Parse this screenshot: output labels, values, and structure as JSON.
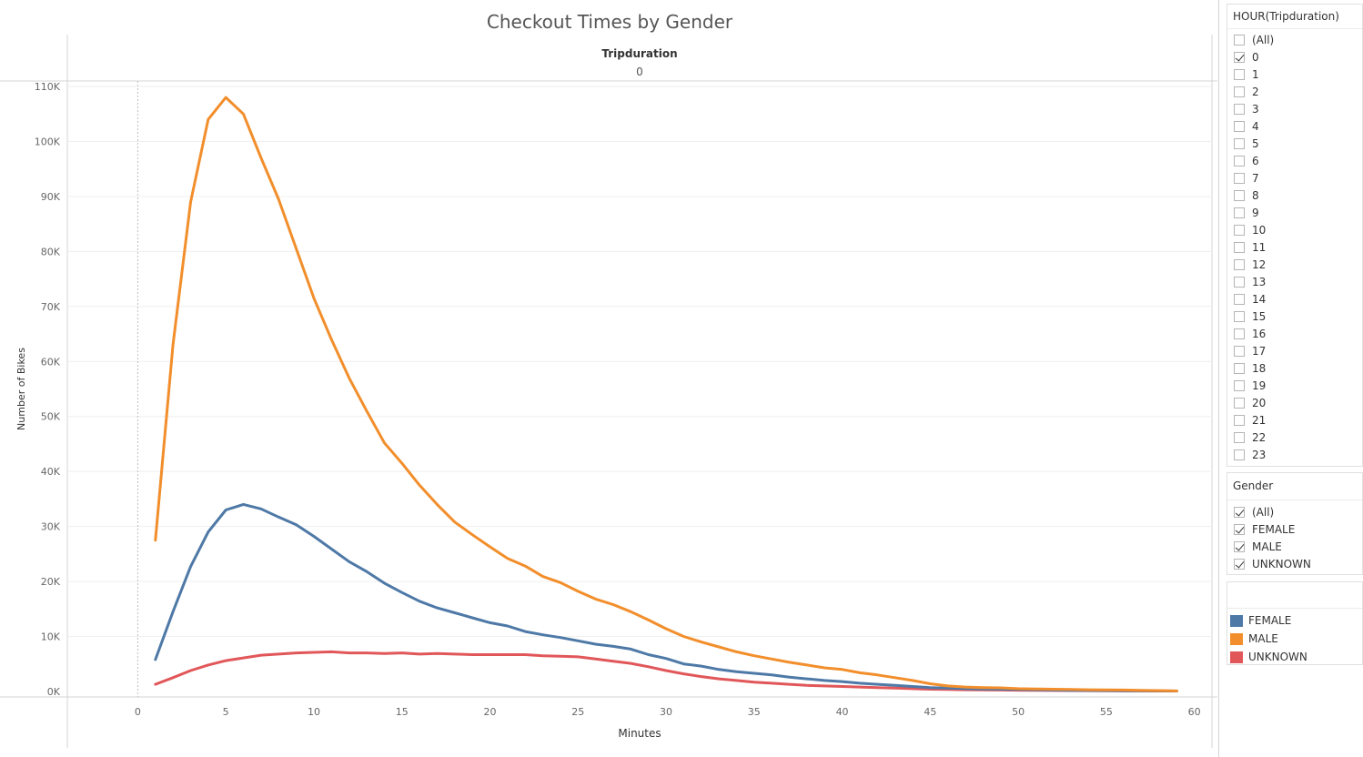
{
  "chart_data": {
    "type": "line",
    "title": "Checkout Times by Gender",
    "header_label": "Tripduration",
    "header_value": "0",
    "xlabel": "Minutes",
    "ylabel": "Number of Bikes",
    "xlim": [
      -4,
      61
    ],
    "ylim": [
      -1000,
      111000
    ],
    "x_ticks": [
      0,
      5,
      10,
      15,
      20,
      25,
      30,
      35,
      40,
      45,
      50,
      55,
      60
    ],
    "x_tick_labels": [
      "0",
      "5",
      "10",
      "15",
      "20",
      "25",
      "30",
      "35",
      "40",
      "45",
      "50",
      "55",
      "60"
    ],
    "y_ticks": [
      0,
      10000,
      20000,
      30000,
      40000,
      50000,
      60000,
      70000,
      80000,
      90000,
      100000,
      110000
    ],
    "y_tick_labels": [
      "0K",
      "10K",
      "20K",
      "30K",
      "40K",
      "50K",
      "60K",
      "70K",
      "80K",
      "90K",
      "100K",
      "110K"
    ],
    "grid": "horizontal",
    "x": [
      1,
      2,
      3,
      4,
      5,
      6,
      7,
      8,
      9,
      10,
      11,
      12,
      13,
      14,
      15,
      16,
      17,
      18,
      19,
      20,
      21,
      22,
      23,
      24,
      25,
      26,
      27,
      28,
      29,
      30,
      31,
      32,
      33,
      34,
      35,
      36,
      37,
      38,
      39,
      40,
      41,
      42,
      43,
      44,
      45,
      46,
      47,
      48,
      49,
      50,
      51,
      52,
      53,
      54,
      55,
      56,
      57,
      58,
      59
    ],
    "series": [
      {
        "name": "MALE",
        "color": "#f28e2b",
        "values": [
          27500,
          63000,
          89000,
          104000,
          108000,
          105000,
          97000,
          89500,
          80500,
          71500,
          64000,
          57000,
          51000,
          45200,
          41500,
          37500,
          34000,
          30800,
          28500,
          26300,
          24200,
          22800,
          20900,
          19800,
          18200,
          16800,
          15800,
          14500,
          13000,
          11400,
          10000,
          9000,
          8100,
          7200,
          6500,
          5900,
          5300,
          4800,
          4300,
          4000,
          3400,
          3000,
          2500,
          2000,
          1400,
          1000,
          800,
          700,
          650,
          500,
          450,
          400,
          350,
          300,
          280,
          250,
          200,
          150,
          100
        ]
      },
      {
        "name": "FEMALE",
        "color": "#4e79a7",
        "values": [
          5800,
          14500,
          22700,
          29000,
          33000,
          34000,
          33200,
          31700,
          30300,
          28200,
          25900,
          23600,
          21800,
          19700,
          18000,
          16400,
          15200,
          14300,
          13400,
          12500,
          11900,
          10900,
          10300,
          9800,
          9200,
          8600,
          8200,
          7700,
          6700,
          6000,
          5000,
          4600,
          4000,
          3600,
          3300,
          3000,
          2600,
          2300,
          2000,
          1800,
          1500,
          1300,
          1100,
          900,
          700,
          600,
          500,
          450,
          400,
          350,
          300,
          250,
          200,
          180,
          160,
          140,
          120,
          100,
          80
        ]
      },
      {
        "name": "UNKNOWN",
        "color": "#e15759",
        "values": [
          1300,
          2500,
          3800,
          4800,
          5600,
          6100,
          6600,
          6800,
          7000,
          7100,
          7200,
          7000,
          7000,
          6900,
          7000,
          6800,
          6900,
          6800,
          6700,
          6700,
          6700,
          6700,
          6500,
          6400,
          6300,
          5900,
          5500,
          5100,
          4500,
          3800,
          3200,
          2700,
          2300,
          2000,
          1700,
          1500,
          1300,
          1100,
          1000,
          900,
          800,
          700,
          600,
          500,
          400,
          350,
          300,
          280,
          250,
          220,
          200,
          180,
          160,
          140,
          120,
          100,
          90,
          80,
          70
        ]
      }
    ]
  },
  "filters": {
    "hour": {
      "title": "HOUR(Tripduration)",
      "items": [
        {
          "label": "(All)",
          "checked": false
        },
        {
          "label": "0",
          "checked": true
        },
        {
          "label": "1",
          "checked": false
        },
        {
          "label": "2",
          "checked": false
        },
        {
          "label": "3",
          "checked": false
        },
        {
          "label": "4",
          "checked": false
        },
        {
          "label": "5",
          "checked": false
        },
        {
          "label": "6",
          "checked": false
        },
        {
          "label": "7",
          "checked": false
        },
        {
          "label": "8",
          "checked": false
        },
        {
          "label": "9",
          "checked": false
        },
        {
          "label": "10",
          "checked": false
        },
        {
          "label": "11",
          "checked": false
        },
        {
          "label": "12",
          "checked": false
        },
        {
          "label": "13",
          "checked": false
        },
        {
          "label": "14",
          "checked": false
        },
        {
          "label": "15",
          "checked": false
        },
        {
          "label": "16",
          "checked": false
        },
        {
          "label": "17",
          "checked": false
        },
        {
          "label": "18",
          "checked": false
        },
        {
          "label": "19",
          "checked": false
        },
        {
          "label": "20",
          "checked": false
        },
        {
          "label": "21",
          "checked": false
        },
        {
          "label": "22",
          "checked": false
        },
        {
          "label": "23",
          "checked": false
        }
      ]
    },
    "gender": {
      "title": "Gender",
      "items": [
        {
          "label": "(All)",
          "checked": true
        },
        {
          "label": "FEMALE",
          "checked": true
        },
        {
          "label": "MALE",
          "checked": true
        },
        {
          "label": "UNKNOWN",
          "checked": true
        }
      ]
    }
  },
  "legend": {
    "title": "",
    "items": [
      {
        "label": "FEMALE",
        "color": "#4e79a7"
      },
      {
        "label": "MALE",
        "color": "#f28e2b"
      },
      {
        "label": "UNKNOWN",
        "color": "#e15759"
      }
    ]
  }
}
